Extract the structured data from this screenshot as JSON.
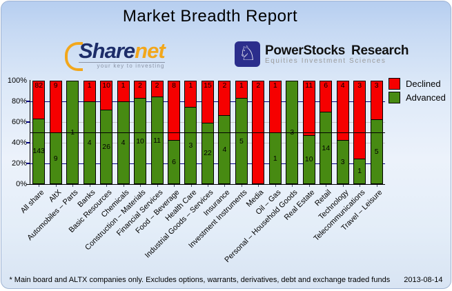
{
  "title": "Market Breadth Report",
  "logos": {
    "sharenet": {
      "part1": "Share",
      "part2": "net",
      "tagline": "your key to investing",
      "brand_navy": "#1d2d69",
      "brand_orange": "#f2a71c"
    },
    "powerstocks": {
      "name1": "PowerStocks",
      "name2": "Research",
      "tagline": "Equities Investment Sciences",
      "icon": "knight-icon",
      "badge_color": "#2b2e8c"
    }
  },
  "chart_data": {
    "type": "bar",
    "stacked": true,
    "normalized_to_100_percent": true,
    "categories": [
      "All share",
      "AltX",
      "Automobiles – Parts",
      "Banks",
      "Basic Resources",
      "Chemicals",
      "Construction – Materials",
      "Financial Services",
      "Food – Beverage",
      "Health Care",
      "Industrial Goods – Services",
      "Insurance",
      "Investment Instruments",
      "Media",
      "Oil – Gas",
      "Personal – Household Goods",
      "Real Estate",
      "Retail",
      "Technology",
      "Telecommunications",
      "Travel – Leisure"
    ],
    "series": [
      {
        "name": "Declined",
        "color": "#f60000",
        "values": [
          82,
          9,
          0,
          1,
          10,
          1,
          2,
          2,
          8,
          1,
          15,
          2,
          1,
          2,
          1,
          0,
          11,
          6,
          4,
          3,
          3
        ]
      },
      {
        "name": "Advanced",
        "color": "#478a12",
        "values": [
          143,
          9,
          1,
          4,
          26,
          4,
          10,
          11,
          6,
          3,
          22,
          4,
          5,
          0,
          1,
          3,
          10,
          14,
          3,
          1,
          5
        ]
      }
    ],
    "y_axis": {
      "tick_labels": [
        "100%",
        "80%",
        "60%",
        "40%",
        "20%",
        "0%"
      ],
      "range": [
        0,
        100
      ],
      "unit": "percent"
    },
    "midline_at": 50,
    "grid": true,
    "legend_position": "top-right"
  },
  "footer": {
    "note": "* Main board and ALTX companies only. Excludes options, warrants, derivatives, debt and exchange traded funds",
    "date": "2013-08-14"
  }
}
